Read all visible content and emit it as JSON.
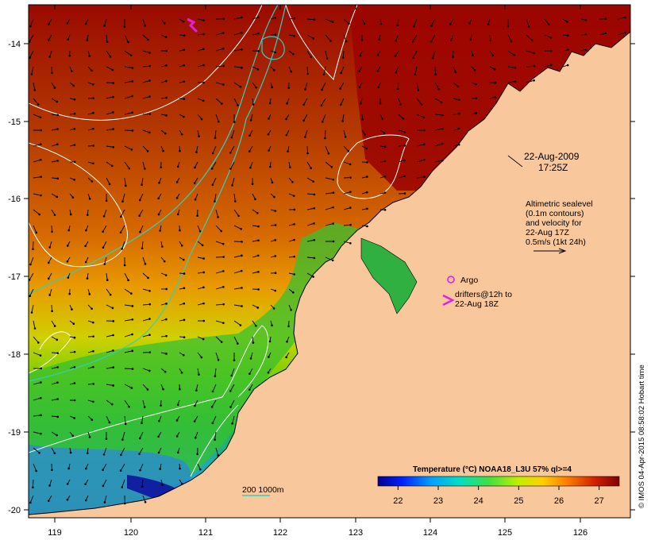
{
  "map": {
    "x_axis_labels": [
      "119",
      "120",
      "121",
      "122",
      "123",
      "124",
      "125",
      "126"
    ],
    "y_axis_labels": [
      "-14",
      "-15",
      "-16",
      "-17",
      "-18",
      "-19",
      "-20"
    ],
    "datetime_line1": "22-Aug-2009",
    "datetime_line2": "17:25Z",
    "altimetry_lines": [
      "Altimetric sealevel",
      "(0.1m contours)",
      "and velocity for",
      "22-Aug 17Z",
      "0.5m/s (1kt 24h)"
    ],
    "argo_label": "Argo",
    "drifters_line1": "drifters@12h to",
    "drifters_line2": "22-Aug 18Z",
    "bathy_label": "200  1000m",
    "credit": "© IMOS 04-Apr-2015 08:58:02 Hobart time",
    "colors": {
      "land": "#f9c79c",
      "argo": "#e020e0",
      "bathy_200": "#30d0c0",
      "contour": "#ffffff"
    }
  },
  "colorbar": {
    "title": "Temperature (°C) NOAA18_L3U 57% ql>=4",
    "ticks": [
      "22",
      "23",
      "24",
      "25",
      "26",
      "27"
    ],
    "range": [
      21.5,
      27.5
    ]
  }
}
